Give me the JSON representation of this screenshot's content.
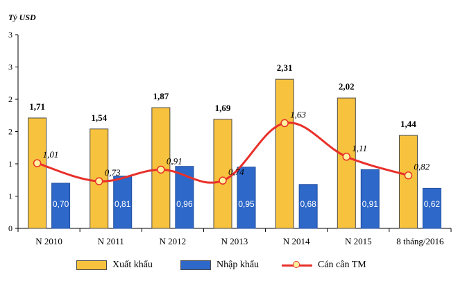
{
  "chart_data": {
    "type": "bar",
    "y_unit_label": "Tỷ USD",
    "ylim": [
      0,
      3
    ],
    "y_tick_values": [
      0,
      0.5,
      1,
      1.5,
      2,
      2.5,
      3
    ],
    "y_tick_labels": [
      "0",
      "1",
      "1",
      "2",
      "2",
      "3",
      "3"
    ],
    "categories": [
      "N 2010",
      "N 2011",
      "N 2012",
      "N 2013",
      "N 2014",
      "N 2015",
      "8 tháng/2016"
    ],
    "series": [
      {
        "name": "Xuất khẩu",
        "kind": "bar",
        "color": "#f7c23e",
        "values": [
          1.71,
          1.54,
          1.87,
          1.69,
          2.31,
          2.02,
          1.44
        ],
        "labels": [
          "1,71",
          "1,54",
          "1,87",
          "1,69",
          "2,31",
          "2,02",
          "1,44"
        ]
      },
      {
        "name": "Nhập khẩu",
        "kind": "bar",
        "color": "#2e68c9",
        "values": [
          0.7,
          0.81,
          0.96,
          0.95,
          0.68,
          0.91,
          0.62
        ],
        "labels": [
          "0,70",
          "0,81",
          "0,96",
          "0,95",
          "0,68",
          "0,91",
          "0,62"
        ]
      },
      {
        "name": "Cán cân TM",
        "kind": "line",
        "color": "#e8302a",
        "values": [
          1.01,
          0.73,
          0.91,
          0.74,
          1.63,
          1.11,
          0.82
        ],
        "labels": [
          "1,01",
          "0,73",
          "0,91",
          "0,74",
          "1,63",
          "1,11",
          "0,82"
        ]
      }
    ],
    "legend_position": "bottom",
    "grid": false
  }
}
